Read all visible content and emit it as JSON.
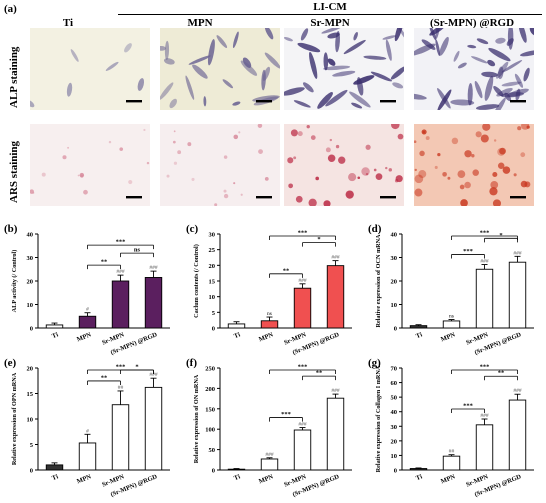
{
  "panel_a": {
    "label": "(a)",
    "group_header": "LI-CM",
    "columns": [
      "Ti",
      "MPN",
      "Sr-MPN",
      "(Sr-MPN) @RGD"
    ],
    "rows": [
      "ALP staining",
      "ARS staining"
    ]
  },
  "chart_data": [
    {
      "panel": "(b)",
      "type": "bar",
      "ylabel": "ALP activity (/ Control)",
      "categories": [
        "Ti",
        "MPN",
        "Sr-MPN",
        "(Sr-MPN) @RGD"
      ],
      "values": [
        1.3,
        5.0,
        20.0,
        21.5
      ],
      "errors": [
        0.8,
        1.5,
        2.5,
        2.7
      ],
      "ylim": [
        0,
        40
      ],
      "yticks": [
        0,
        10,
        20,
        30,
        40
      ],
      "colors": [
        "#ffffff",
        "#5b1f5f",
        "#5b1f5f",
        "#5b1f5f"
      ],
      "bar_marks": [
        "",
        "#",
        "###",
        "###"
      ],
      "comparisons": [
        {
          "from": 1,
          "to": 2,
          "label": "**"
        },
        {
          "from": 1,
          "to": 3,
          "label": "***"
        },
        {
          "from": 2,
          "to": 3,
          "label": "ns"
        }
      ]
    },
    {
      "panel": "(c)",
      "type": "bar",
      "ylabel": "Caclum contents (/ Control)",
      "categories": [
        "Ti",
        "MPN",
        "Sr-MPN",
        "(Sr-MPN) @RGD"
      ],
      "values": [
        1.3,
        2.3,
        12.7,
        19.9
      ],
      "errors": [
        0.7,
        1.2,
        1.4,
        1.6
      ],
      "ylim": [
        0,
        30
      ],
      "yticks": [
        0,
        5,
        10,
        15,
        20,
        25,
        30
      ],
      "colors": [
        "#ffffff",
        "#f05050",
        "#f05050",
        "#f05050"
      ],
      "bar_marks": [
        "",
        "ns",
        "###",
        "###"
      ],
      "comparisons": [
        {
          "from": 1,
          "to": 2,
          "label": "**"
        },
        {
          "from": 1,
          "to": 3,
          "label": "***"
        },
        {
          "from": 2,
          "to": 3,
          "label": "*"
        }
      ]
    },
    {
      "panel": "(d)",
      "type": "bar",
      "ylabel": "Relative expression of OCN mRNA",
      "categories": [
        "Ti",
        "MPN",
        "Sr-MPN",
        "(Sr-MPN) @RGD"
      ],
      "values": [
        1.0,
        3.0,
        25.0,
        28.0
      ],
      "errors": [
        0.4,
        0.6,
        2.0,
        2.5
      ],
      "ylim": [
        0,
        40
      ],
      "yticks": [
        0,
        10,
        20,
        30,
        40
      ],
      "colors": [
        "#333333",
        "#ffffff",
        "#ffffff",
        "#ffffff"
      ],
      "bar_marks": [
        "",
        "ns",
        "###",
        "###"
      ],
      "comparisons": [
        {
          "from": 1,
          "to": 2,
          "label": "***"
        },
        {
          "from": 1,
          "to": 3,
          "label": "***"
        },
        {
          "from": 2,
          "to": 3,
          "label": "*"
        }
      ]
    },
    {
      "panel": "(e)",
      "type": "bar",
      "ylabel": "Relative expression of OPN mRNA",
      "categories": [
        "Ti",
        "MPN",
        "Sr-MPN",
        "(Sr-MPN) @RGD"
      ],
      "values": [
        1.0,
        5.3,
        12.8,
        16.2
      ],
      "errors": [
        0.4,
        1.7,
        2.7,
        1.8
      ],
      "ylim": [
        0,
        20
      ],
      "yticks": [
        0,
        5,
        10,
        15,
        20
      ],
      "colors": [
        "#333333",
        "#ffffff",
        "#ffffff",
        "#ffffff"
      ],
      "bar_marks": [
        "",
        "#",
        "##",
        "###"
      ],
      "comparisons": [
        {
          "from": 1,
          "to": 2,
          "label": "**"
        },
        {
          "from": 1,
          "to": 3,
          "label": "***"
        },
        {
          "from": 2,
          "to": 3,
          "label": "*"
        }
      ]
    },
    {
      "panel": "(f)",
      "type": "bar",
      "ylabel": "Relative expression of ON mRNA",
      "categories": [
        "Ti",
        "MPN",
        "Sr-MPN",
        "(Sr-MPN) @RGD"
      ],
      "values": [
        2.0,
        27.0,
        98.0,
        176.0
      ],
      "errors": [
        1.5,
        3.0,
        6.0,
        10.0
      ],
      "ylim": [
        0,
        250
      ],
      "yticks": [
        0,
        50,
        100,
        150,
        200,
        250
      ],
      "colors": [
        "#333333",
        "#ffffff",
        "#ffffff",
        "#ffffff"
      ],
      "bar_marks": [
        "",
        "###",
        "###",
        "###"
      ],
      "comparisons": [
        {
          "from": 1,
          "to": 2,
          "label": "***"
        },
        {
          "from": 1,
          "to": 3,
          "label": "***"
        },
        {
          "from": 2,
          "to": 3,
          "label": "**"
        }
      ]
    },
    {
      "panel": "(g)",
      "type": "bar",
      "ylabel": "Relative expression of Collagen I mRNA",
      "categories": [
        "Ti",
        "MPN",
        "Sr-MPN",
        "(Sr-MPN) @RGD"
      ],
      "values": [
        1.0,
        9.5,
        31.0,
        48.0
      ],
      "errors": [
        0.4,
        1.0,
        4.0,
        4.0
      ],
      "ylim": [
        0,
        70
      ],
      "yticks": [
        0,
        10,
        20,
        30,
        40,
        50,
        60,
        70
      ],
      "colors": [
        "#333333",
        "#ffffff",
        "#ffffff",
        "#ffffff"
      ],
      "bar_marks": [
        "",
        "##",
        "###",
        "###"
      ],
      "comparisons": [
        {
          "from": 1,
          "to": 2,
          "label": "***"
        },
        {
          "from": 1,
          "to": 3,
          "label": "***"
        },
        {
          "from": 2,
          "to": 3,
          "label": "**"
        }
      ]
    }
  ]
}
